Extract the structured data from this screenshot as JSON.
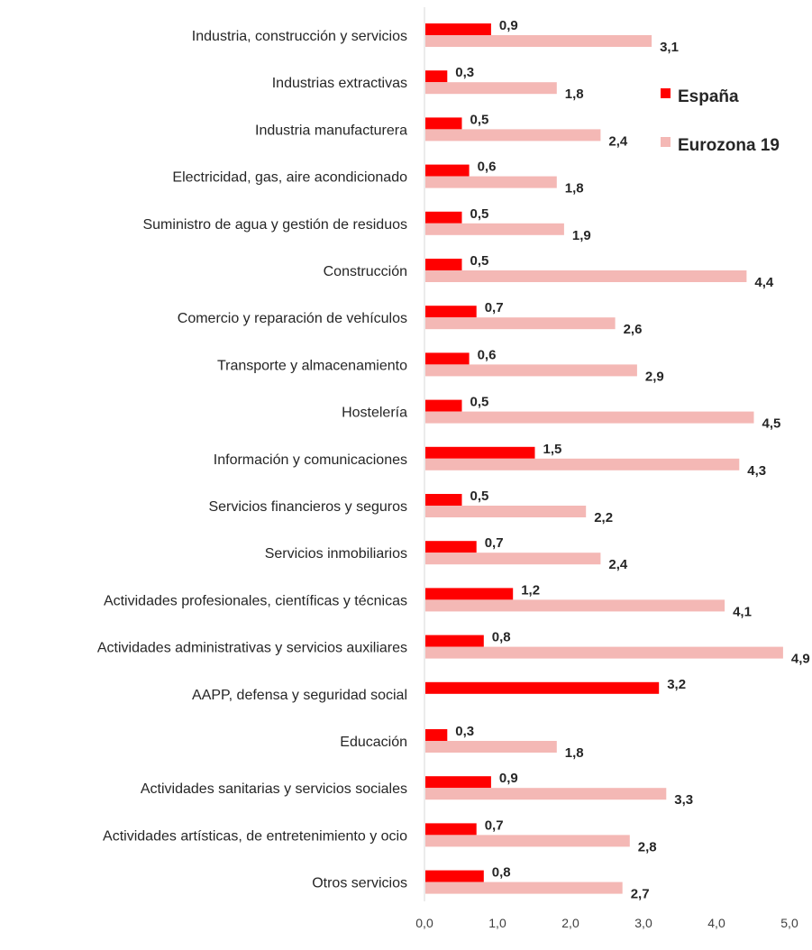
{
  "chart_data": {
    "type": "bar",
    "orientation": "horizontal",
    "categories": [
      "Industria, construcción y servicios",
      "Industrias extractivas",
      "Industria manufacturera",
      "Electricidad, gas, aire acondicionado",
      "Suministro de agua y gestión de residuos",
      "Construcción",
      "Comercio y reparación de vehículos",
      "Transporte y almacenamiento",
      "Hostelería",
      "Información y comunicaciones",
      "Servicios financieros y seguros",
      "Servicios inmobiliarios",
      "Actividades profesionales, científicas y técnicas",
      "Actividades administrativas y servicios auxiliares",
      "AAPP, defensa y seguridad social",
      "Educación",
      "Actividades sanitarias y servicios sociales",
      "Actividades artísticas, de entretenimiento y ocio",
      "Otros servicios"
    ],
    "series": [
      {
        "name": "España",
        "color": "#ff0000",
        "values": [
          0.9,
          0.3,
          0.5,
          0.6,
          0.5,
          0.5,
          0.7,
          0.6,
          0.5,
          1.5,
          0.5,
          0.7,
          1.2,
          0.8,
          3.2,
          0.3,
          0.9,
          0.7,
          0.8
        ],
        "labels": [
          "0,9",
          "0,3",
          "0,5",
          "0,6",
          "0,5",
          "0,5",
          "0,7",
          "0,6",
          "0,5",
          "1,5",
          "0,5",
          "0,7",
          "1,2",
          "0,8",
          "3,2",
          "0,3",
          "0,9",
          "0,7",
          "0,8"
        ]
      },
      {
        "name": "Eurozona 19",
        "color": "#f4b8b5",
        "values": [
          3.1,
          1.8,
          2.4,
          1.8,
          1.9,
          4.4,
          2.6,
          2.9,
          4.5,
          4.3,
          2.2,
          2.4,
          4.1,
          4.9,
          null,
          1.8,
          3.3,
          2.8,
          2.7
        ],
        "labels": [
          "3,1",
          "1,8",
          "2,4",
          "1,8",
          "1,9",
          "4,4",
          "2,6",
          "2,9",
          "4,5",
          "4,3",
          "2,2",
          "2,4",
          "4,1",
          "4,9",
          "",
          "1,8",
          "3,3",
          "2,8",
          "2,7"
        ]
      }
    ],
    "xlim": [
      0,
      5
    ],
    "xticks": [
      "0,0",
      "1,0",
      "2,0",
      "3,0",
      "4,0",
      "5,0"
    ],
    "grid": false,
    "legend": "top-right"
  }
}
